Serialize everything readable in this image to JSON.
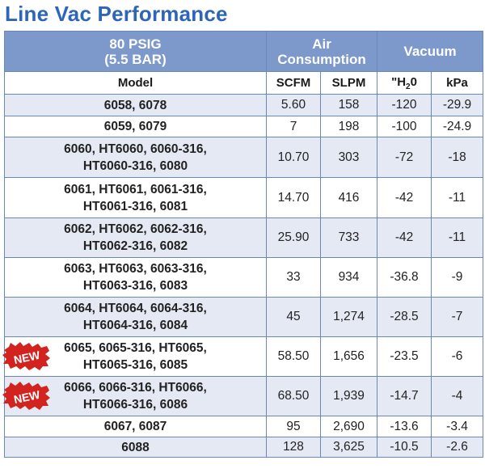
{
  "title": "Line Vac Performance",
  "header": {
    "pressure_line1": "80 PSIG",
    "pressure_line2": "(5.5 BAR)",
    "air_line1": "Air",
    "air_line2": "Consumption",
    "vacuum": "Vacuum",
    "model": "Model",
    "scfm": "SCFM",
    "slpm": "SLPM",
    "h2o_prefix": "\"H",
    "h2o_sub": "2",
    "h2o_suffix": "0",
    "kpa": "kPa"
  },
  "new_badge": "NEW",
  "rows": [
    {
      "model1": "6058, 6078",
      "model2": "",
      "scfm": "5.60",
      "slpm": "158",
      "h2o": "-120",
      "kpa": "-29.9",
      "new": false
    },
    {
      "model1": "6059, 6079",
      "model2": "",
      "scfm": "7",
      "slpm": "198",
      "h2o": "-100",
      "kpa": "-24.9",
      "new": false
    },
    {
      "model1": "6060, HT6060, 6060-316,",
      "model2": "HT6060-316, 6080",
      "scfm": "10.70",
      "slpm": "303",
      "h2o": "-72",
      "kpa": "-18",
      "new": false
    },
    {
      "model1": "6061, HT6061, 6061-316,",
      "model2": "HT6061-316, 6081",
      "scfm": "14.70",
      "slpm": "416",
      "h2o": "-42",
      "kpa": "-11",
      "new": false
    },
    {
      "model1": "6062, HT6062, 6062-316,",
      "model2": "HT6062-316, 6082",
      "scfm": "25.90",
      "slpm": "733",
      "h2o": "-42",
      "kpa": "-11",
      "new": false
    },
    {
      "model1": "6063, HT6063, 6063-316,",
      "model2": "HT6063-316, 6083",
      "scfm": "33",
      "slpm": "934",
      "h2o": "-36.8",
      "kpa": "-9",
      "new": false
    },
    {
      "model1": "6064, HT6064, 6064-316,",
      "model2": "HT6064-316, 6084",
      "scfm": "45",
      "slpm": "1,274",
      "h2o": "-28.5",
      "kpa": "-7",
      "new": false
    },
    {
      "model1": "6065, 6065-316, HT6065,",
      "model2": "HT6065-316, 6085",
      "scfm": "58.50",
      "slpm": "1,656",
      "h2o": "-23.5",
      "kpa": "-6",
      "new": true
    },
    {
      "model1": "6066, 6066-316, HT6066,",
      "model2": "HT6066-316, 6086",
      "scfm": "68.50",
      "slpm": "1,939",
      "h2o": "-14.7",
      "kpa": "-4",
      "new": true
    },
    {
      "model1": "6067, 6087",
      "model2": "",
      "scfm": "95",
      "slpm": "2,690",
      "h2o": "-13.6",
      "kpa": "-3.4",
      "new": false
    },
    {
      "model1": "6088",
      "model2": "",
      "scfm": "128",
      "slpm": "3,625",
      "h2o": "-10.5",
      "kpa": "-2.6",
      "new": false
    }
  ]
}
